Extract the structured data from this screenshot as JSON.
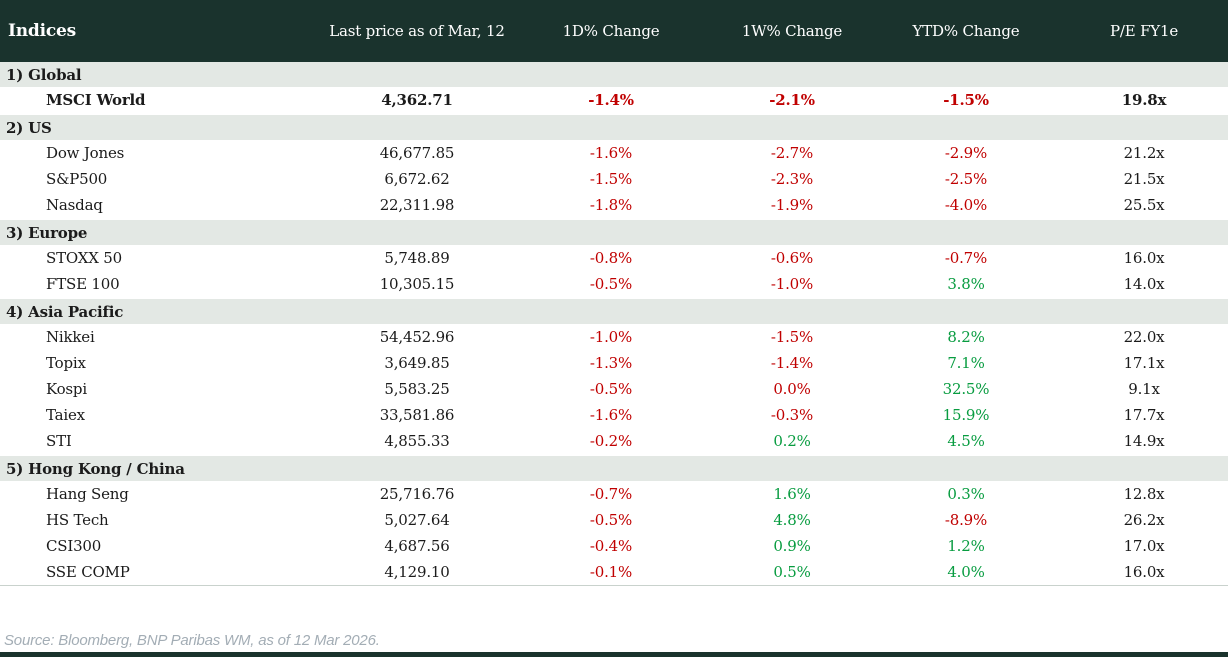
{
  "colors": {
    "header_bg": "#1a332d",
    "section_bg": "#e3e8e4",
    "negative_red": "#c00000",
    "positive_green": "#089c40"
  },
  "table": {
    "title": "Indices",
    "columns": [
      "Last price as of Mar, 12",
      "1D% Change",
      "1W% Change",
      "YTD% Change",
      "P/E FY1e"
    ],
    "sections": [
      {
        "label": "1) Global",
        "rows": [
          {
            "name": "MSCI World",
            "emphasis": true,
            "price": "4,362.71",
            "changes": [
              {
                "value": "-1.4%",
                "tone": "neg"
              },
              {
                "value": "-2.1%",
                "tone": "neg"
              },
              {
                "value": "-1.5%",
                "tone": "neg"
              }
            ],
            "pe": "19.8x"
          }
        ]
      },
      {
        "label": "2) US",
        "rows": [
          {
            "name": "Dow Jones",
            "emphasis": false,
            "price": "46,677.85",
            "changes": [
              {
                "value": "-1.6%",
                "tone": "neg"
              },
              {
                "value": "-2.7%",
                "tone": "neg"
              },
              {
                "value": "-2.9%",
                "tone": "neg"
              }
            ],
            "pe": "21.2x"
          },
          {
            "name": "S&P500",
            "emphasis": false,
            "price": "6,672.62",
            "changes": [
              {
                "value": "-1.5%",
                "tone": "neg"
              },
              {
                "value": "-2.3%",
                "tone": "neg"
              },
              {
                "value": "-2.5%",
                "tone": "neg"
              }
            ],
            "pe": "21.5x"
          },
          {
            "name": "Nasdaq",
            "emphasis": false,
            "price": "22,311.98",
            "changes": [
              {
                "value": "-1.8%",
                "tone": "neg"
              },
              {
                "value": "-1.9%",
                "tone": "neg"
              },
              {
                "value": "-4.0%",
                "tone": "neg"
              }
            ],
            "pe": "25.5x"
          }
        ]
      },
      {
        "label": "3) Europe",
        "rows": [
          {
            "name": "STOXX 50",
            "emphasis": false,
            "price": "5,748.89",
            "changes": [
              {
                "value": "-0.8%",
                "tone": "neg"
              },
              {
                "value": "-0.6%",
                "tone": "neg"
              },
              {
                "value": "-0.7%",
                "tone": "neg"
              }
            ],
            "pe": "16.0x"
          },
          {
            "name": "FTSE 100",
            "emphasis": false,
            "price": "10,305.15",
            "changes": [
              {
                "value": "-0.5%",
                "tone": "neg"
              },
              {
                "value": "-1.0%",
                "tone": "neg"
              },
              {
                "value": "3.8%",
                "tone": "pos"
              }
            ],
            "pe": "14.0x"
          }
        ]
      },
      {
        "label": "4) Asia Pacific",
        "rows": [
          {
            "name": "Nikkei",
            "emphasis": false,
            "price": "54,452.96",
            "changes": [
              {
                "value": "-1.0%",
                "tone": "neg"
              },
              {
                "value": "-1.5%",
                "tone": "neg"
              },
              {
                "value": "8.2%",
                "tone": "pos"
              }
            ],
            "pe": "22.0x"
          },
          {
            "name": "Topix",
            "emphasis": false,
            "price": "3,649.85",
            "changes": [
              {
                "value": "-1.3%",
                "tone": "neg"
              },
              {
                "value": "-1.4%",
                "tone": "neg"
              },
              {
                "value": "7.1%",
                "tone": "pos"
              }
            ],
            "pe": "17.1x"
          },
          {
            "name": "Kospi",
            "emphasis": false,
            "price": "5,583.25",
            "changes": [
              {
                "value": "-0.5%",
                "tone": "neg"
              },
              {
                "value": "0.0%",
                "tone": "neg"
              },
              {
                "value": "32.5%",
                "tone": "pos"
              }
            ],
            "pe": "9.1x"
          },
          {
            "name": "Taiex",
            "emphasis": false,
            "price": "33,581.86",
            "changes": [
              {
                "value": "-1.6%",
                "tone": "neg"
              },
              {
                "value": "-0.3%",
                "tone": "neg"
              },
              {
                "value": "15.9%",
                "tone": "pos"
              }
            ],
            "pe": "17.7x"
          },
          {
            "name": "STI",
            "emphasis": false,
            "price": "4,855.33",
            "changes": [
              {
                "value": "-0.2%",
                "tone": "neg"
              },
              {
                "value": "0.2%",
                "tone": "pos"
              },
              {
                "value": "4.5%",
                "tone": "pos"
              }
            ],
            "pe": "14.9x"
          }
        ]
      },
      {
        "label": "5) Hong Kong / China",
        "rows": [
          {
            "name": "Hang Seng",
            "emphasis": false,
            "price": "25,716.76",
            "changes": [
              {
                "value": "-0.7%",
                "tone": "neg"
              },
              {
                "value": "1.6%",
                "tone": "pos"
              },
              {
                "value": "0.3%",
                "tone": "pos"
              }
            ],
            "pe": "12.8x"
          },
          {
            "name": "HS Tech",
            "emphasis": false,
            "price": "5,027.64",
            "changes": [
              {
                "value": "-0.5%",
                "tone": "neg"
              },
              {
                "value": "4.8%",
                "tone": "pos"
              },
              {
                "value": "-8.9%",
                "tone": "neg"
              }
            ],
            "pe": "26.2x"
          },
          {
            "name": "CSI300",
            "emphasis": false,
            "price": "4,687.56",
            "changes": [
              {
                "value": "-0.4%",
                "tone": "neg"
              },
              {
                "value": "0.9%",
                "tone": "pos"
              },
              {
                "value": "1.2%",
                "tone": "pos"
              }
            ],
            "pe": "17.0x"
          },
          {
            "name": "SSE COMP",
            "emphasis": false,
            "price": "4,129.10",
            "changes": [
              {
                "value": "-0.1%",
                "tone": "neg"
              },
              {
                "value": "0.5%",
                "tone": "pos"
              },
              {
                "value": "4.0%",
                "tone": "pos"
              }
            ],
            "pe": "16.0x"
          }
        ]
      }
    ]
  },
  "footer": {
    "source": "Source: Bloomberg, BNP Paribas WM, as of 12 Mar 2026."
  }
}
